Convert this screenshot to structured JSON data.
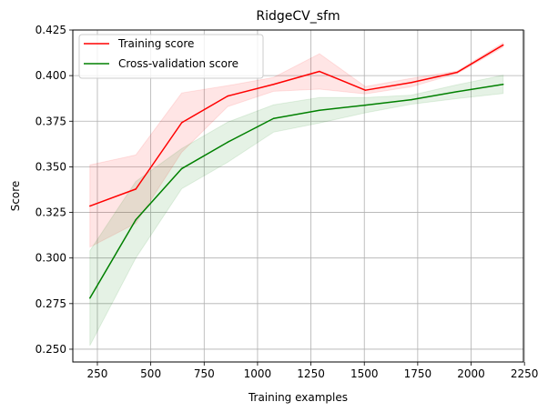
{
  "chart_data": {
    "type": "line",
    "title": "RidgeCV_sfm",
    "xlabel": "Training examples",
    "ylabel": "Score",
    "xlim": [
      135,
      2245
    ],
    "ylim": [
      0.243,
      0.425
    ],
    "xticks": [
      250,
      500,
      750,
      1000,
      1250,
      1500,
      1750,
      2000,
      2250
    ],
    "xtick_labels": [
      "250",
      "500",
      "750",
      "1000",
      "1250",
      "1500",
      "1750",
      "2000",
      "2250"
    ],
    "yticks": [
      0.25,
      0.275,
      0.3,
      0.325,
      0.35,
      0.375,
      0.4,
      0.425
    ],
    "ytick_labels": [
      "0.250",
      "0.275",
      "0.300",
      "0.325",
      "0.350",
      "0.375",
      "0.400",
      "0.425"
    ],
    "grid": true,
    "legend_position": "upper-left",
    "x": [
      215,
      430,
      645,
      860,
      1075,
      1290,
      1505,
      1720,
      1935,
      2150
    ],
    "series": [
      {
        "name": "Training score",
        "color": "#ff0000",
        "fill_color": "#ff0000",
        "values": [
          0.3285,
          0.3378,
          0.3742,
          0.3888,
          0.3952,
          0.4023,
          0.392,
          0.3962,
          0.4018,
          0.4168
        ],
        "band_upper": [
          0.351,
          0.3565,
          0.3905,
          0.3945,
          0.399,
          0.412,
          0.394,
          0.3985,
          0.4025,
          0.418
        ],
        "band_lower": [
          0.306,
          0.319,
          0.358,
          0.383,
          0.3914,
          0.3926,
          0.39,
          0.3939,
          0.4011,
          0.4156
        ]
      },
      {
        "name": "Cross-validation score",
        "color": "#008000",
        "fill_color": "#008000",
        "values": [
          0.278,
          0.321,
          0.349,
          0.3635,
          0.3765,
          0.381,
          0.3838,
          0.3868,
          0.3912,
          0.3952
        ],
        "band_upper": [
          0.304,
          0.342,
          0.36,
          0.3745,
          0.384,
          0.388,
          0.388,
          0.3893,
          0.395,
          0.4002
        ],
        "band_lower": [
          0.252,
          0.3,
          0.338,
          0.3525,
          0.369,
          0.374,
          0.3796,
          0.3843,
          0.3874,
          0.3902
        ]
      }
    ]
  }
}
